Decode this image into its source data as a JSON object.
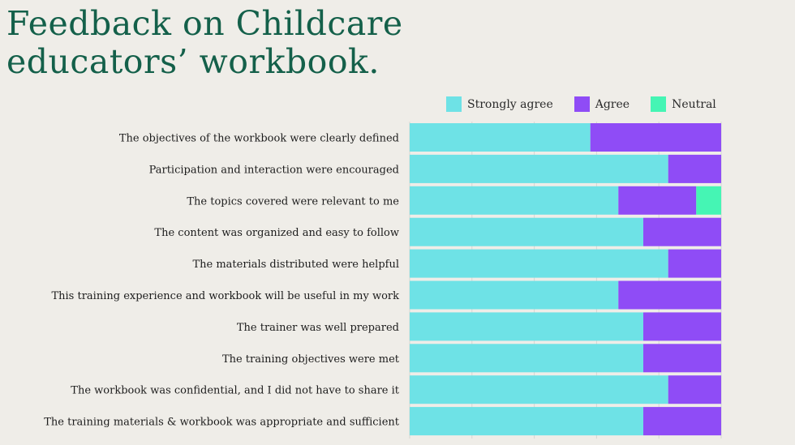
{
  "title_lines": [
    "Feedback on Childcare",
    "educators’ workbook."
  ],
  "chart_data": {
    "type": "bar",
    "orientation": "horizontal",
    "stacked": true,
    "categories": [
      "The objectives of the workbook were clearly defined",
      "Participation and interaction were encouraged",
      "The topics covered were relevant to me",
      "The content was organized and easy to follow",
      "The materials distributed were helpful",
      "This training experience and workbook will be useful in my work",
      "The trainer was well prepared",
      "The training objectives were met",
      "The workbook was confidential, and I did not have to share it",
      "The training materials & workbook was appropriate and sufficient"
    ],
    "series": [
      {
        "name": "Strongly agree",
        "color": "#6ee2e6",
        "values": [
          58,
          83,
          67,
          75,
          83,
          67,
          75,
          75,
          83,
          75
        ]
      },
      {
        "name": "Agree",
        "color": "#8f4cf6",
        "values": [
          42,
          17,
          25,
          25,
          17,
          33,
          25,
          25,
          17,
          25
        ]
      },
      {
        "name": "Neutral",
        "color": "#45f5b4",
        "values": [
          0,
          0,
          8,
          0,
          0,
          0,
          0,
          0,
          0,
          0
        ]
      }
    ],
    "xlim": [
      0,
      100
    ],
    "grid": true,
    "legend": "top"
  }
}
